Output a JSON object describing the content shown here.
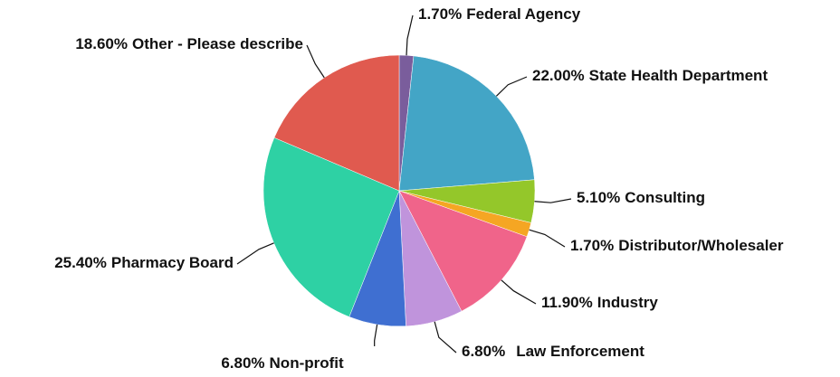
{
  "chart_data": {
    "type": "pie",
    "categories": [
      "Federal Agency",
      "State Health Department",
      "Consulting",
      "Distributor/Wholesaler",
      "Industry",
      "Law Enforcement",
      "Non-profit",
      "Pharmacy Board",
      "Other - Please describe"
    ],
    "values": [
      1.7,
      22.0,
      5.1,
      1.7,
      11.9,
      6.8,
      6.8,
      25.4,
      18.6
    ],
    "value_labels": [
      "1.70%",
      "22.00%",
      "5.10%",
      "1.70%",
      "11.90%",
      "6.80%",
      "6.80%",
      "25.40%",
      "18.60%"
    ],
    "colors": [
      "#7a5d9c",
      "#43a5c6",
      "#94c72a",
      "#f5a623",
      "#f0648a",
      "#c094dc",
      "#3f6fd1",
      "#2ed1a4",
      "#e05a4f"
    ]
  }
}
